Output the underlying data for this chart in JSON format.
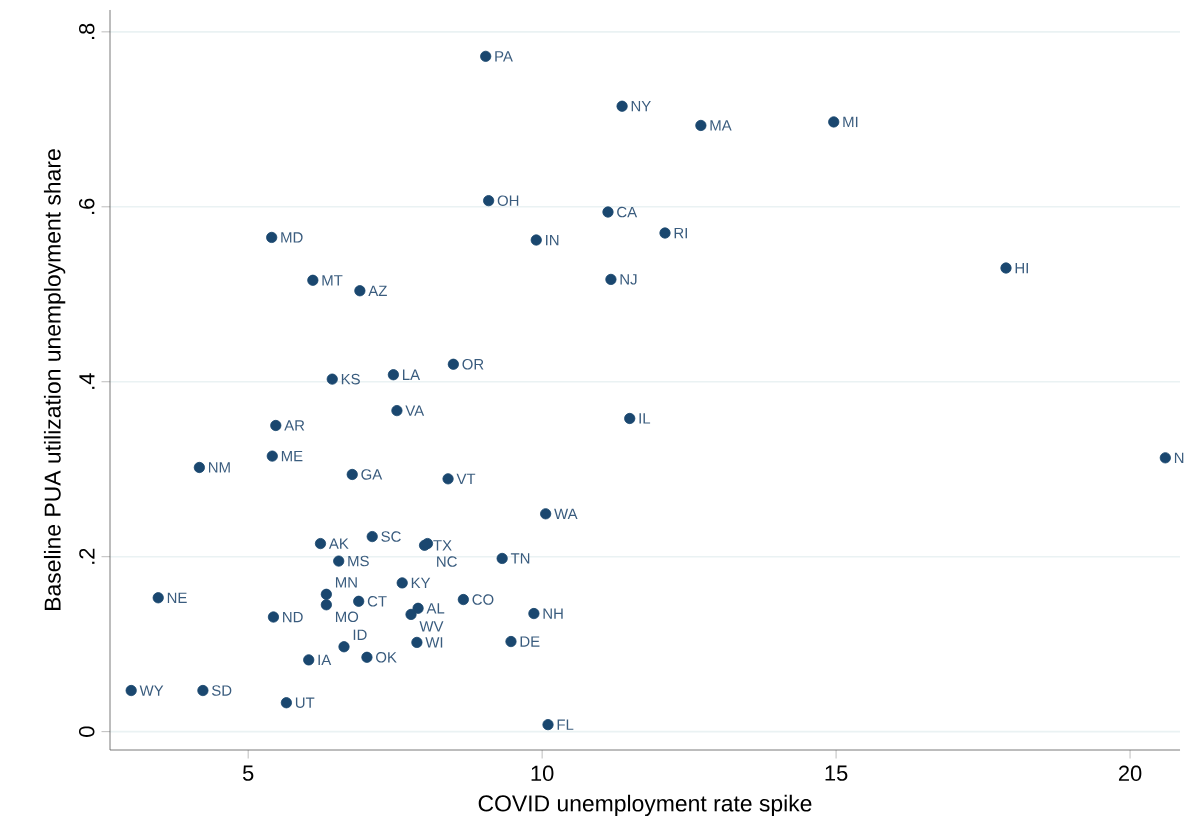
{
  "chart_data": {
    "type": "scatter",
    "xlabel": "COVID unemployment rate spike",
    "ylabel": "Baseline PUA utilization unemployment share",
    "color": "#1a476f",
    "grid": "y",
    "xlim": [
      2.65,
      20.85
    ],
    "ylim": [
      -0.021,
      0.825
    ],
    "xticks": [
      5,
      10,
      15,
      20
    ],
    "yticks": [
      0,
      {
        "value": 0.2,
        "label": ".2"
      },
      {
        "value": 0.4,
        "label": ".4"
      },
      {
        "value": 0.6,
        "label": ".6"
      },
      {
        "value": 0.8,
        "label": ".8"
      }
    ],
    "x": [
      9.04,
      9.09,
      9.9,
      5.4,
      6.1,
      6.9,
      6.43,
      7.47,
      8.49,
      7.53,
      11.36,
      12.7,
      14.96,
      11.12,
      12.09,
      11.17,
      17.89,
      11.49,
      20.6,
      5.47,
      5.41,
      4.17,
      6.77,
      6.23,
      6.54,
      3.47,
      5.43,
      6.33,
      6.33,
      6.88,
      6.03,
      6.63,
      7.02,
      3.01,
      4.23,
      5.65,
      8.4,
      10.06,
      7.11,
      8.0,
      8.05,
      9.32,
      7.62,
      8.66,
      7.89,
      7.77,
      9.86,
      7.87,
      9.47,
      10.1
    ],
    "values": [
      0.772,
      0.607,
      0.562,
      0.565,
      0.516,
      0.504,
      0.403,
      0.408,
      0.42,
      0.367,
      0.715,
      0.693,
      0.697,
      0.594,
      0.57,
      0.517,
      0.53,
      0.358,
      0.313,
      0.35,
      0.315,
      0.302,
      0.294,
      0.215,
      0.195,
      0.153,
      0.131,
      0.157,
      0.145,
      0.149,
      0.082,
      0.097,
      0.085,
      0.047,
      0.047,
      0.033,
      0.289,
      0.249,
      0.223,
      0.213,
      0.215,
      0.198,
      0.17,
      0.151,
      0.141,
      0.134,
      0.135,
      0.102,
      0.103,
      0.008
    ],
    "annotations": [
      {
        "text": "PA",
        "x": 9.04,
        "y": 0.772
      },
      {
        "text": "OH",
        "x": 9.09,
        "y": 0.607
      },
      {
        "text": "IN",
        "x": 9.9,
        "y": 0.562
      },
      {
        "text": "MD",
        "x": 5.4,
        "y": 0.565
      },
      {
        "text": "MT",
        "x": 6.1,
        "y": 0.516
      },
      {
        "text": "AZ",
        "x": 6.9,
        "y": 0.504
      },
      {
        "text": "KS",
        "x": 6.43,
        "y": 0.403
      },
      {
        "text": "LA",
        "x": 7.47,
        "y": 0.408
      },
      {
        "text": "OR",
        "x": 8.49,
        "y": 0.42
      },
      {
        "text": "VA",
        "x": 7.53,
        "y": 0.367
      },
      {
        "text": "NY",
        "x": 11.36,
        "y": 0.715
      },
      {
        "text": "MA",
        "x": 12.7,
        "y": 0.693
      },
      {
        "text": "MI",
        "x": 14.96,
        "y": 0.697
      },
      {
        "text": "CA",
        "x": 11.12,
        "y": 0.594
      },
      {
        "text": "RI",
        "x": 12.09,
        "y": 0.57
      },
      {
        "text": "NJ",
        "x": 11.17,
        "y": 0.517
      },
      {
        "text": "HI",
        "x": 17.89,
        "y": 0.53
      },
      {
        "text": "IL",
        "x": 11.49,
        "y": 0.358
      },
      {
        "text": "N",
        "x": 20.6,
        "y": 0.313
      },
      {
        "text": "AR",
        "x": 5.47,
        "y": 0.35
      },
      {
        "text": "ME",
        "x": 5.41,
        "y": 0.315
      },
      {
        "text": "NM",
        "x": 4.17,
        "y": 0.302
      },
      {
        "text": "GA",
        "x": 6.77,
        "y": 0.294
      },
      {
        "text": "AK",
        "x": 6.23,
        "y": 0.215
      },
      {
        "text": "MS",
        "x": 6.54,
        "y": 0.195
      },
      {
        "text": "NE",
        "x": 3.47,
        "y": 0.153
      },
      {
        "text": "ND",
        "x": 5.43,
        "y": 0.131
      },
      {
        "text": "MN",
        "x": 6.33,
        "y": 0.157
      },
      {
        "text": "MO",
        "x": 6.33,
        "y": 0.145
      },
      {
        "text": "CT",
        "x": 6.88,
        "y": 0.149
      },
      {
        "text": "IA",
        "x": 6.03,
        "y": 0.082
      },
      {
        "text": "ID",
        "x": 6.63,
        "y": 0.097
      },
      {
        "text": "OK",
        "x": 7.02,
        "y": 0.085
      },
      {
        "text": "WY",
        "x": 3.01,
        "y": 0.047
      },
      {
        "text": "SD",
        "x": 4.23,
        "y": 0.047
      },
      {
        "text": "UT",
        "x": 5.65,
        "y": 0.033
      },
      {
        "text": "VT",
        "x": 8.4,
        "y": 0.289
      },
      {
        "text": "WA",
        "x": 10.06,
        "y": 0.249
      },
      {
        "text": "SC",
        "x": 7.11,
        "y": 0.223
      },
      {
        "text": "TX",
        "x": 8.0,
        "y": 0.213
      },
      {
        "text": "NC",
        "x": 8.05,
        "y": 0.215
      },
      {
        "text": "TN",
        "x": 9.32,
        "y": 0.198
      },
      {
        "text": "KY",
        "x": 7.62,
        "y": 0.17
      },
      {
        "text": "CO",
        "x": 8.66,
        "y": 0.151
      },
      {
        "text": "AL",
        "x": 7.89,
        "y": 0.141
      },
      {
        "text": "WV",
        "x": 7.77,
        "y": 0.134
      },
      {
        "text": "NH",
        "x": 9.86,
        "y": 0.135
      },
      {
        "text": "WI",
        "x": 7.87,
        "y": 0.102
      },
      {
        "text": "DE",
        "x": 9.47,
        "y": 0.103
      },
      {
        "text": "FL",
        "x": 10.1,
        "y": 0.008
      }
    ]
  }
}
